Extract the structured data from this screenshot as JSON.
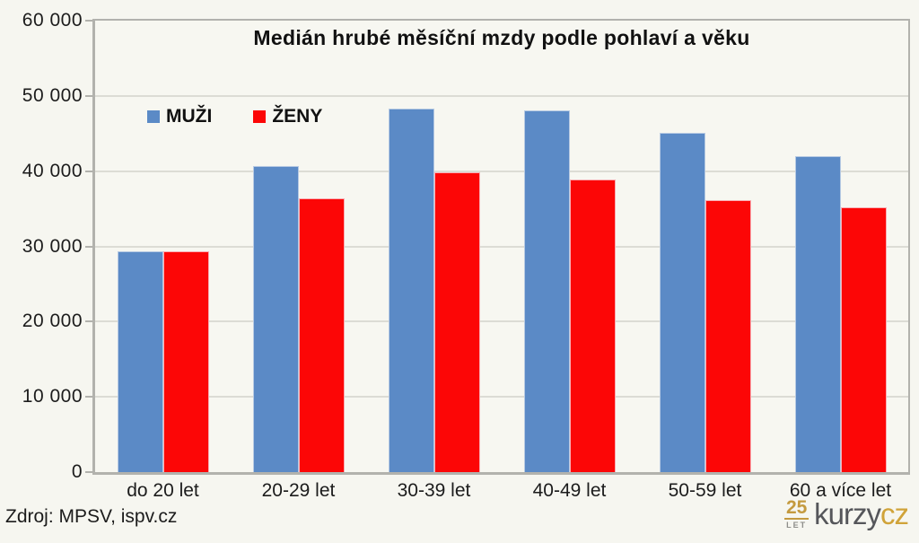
{
  "chart_data": {
    "type": "bar",
    "title": "Medián hrubé měsíční mzdy podle pohlaví a věku",
    "categories": [
      "do 20 let",
      "20-29 let",
      "30-39 let",
      "40-49 let",
      "50-59 let",
      "60 a více let"
    ],
    "series": [
      {
        "name": "MUŽI",
        "color": "#5b8ac6",
        "border_color": "#b7cae3",
        "values": [
          29300,
          40700,
          48300,
          48100,
          45100,
          42000
        ]
      },
      {
        "name": "ŽENY",
        "color": "#fc0606",
        "border_color": "#f9aeb4",
        "values": [
          29400,
          36400,
          39800,
          38900,
          36100,
          35200
        ]
      }
    ],
    "ylim": [
      0,
      60000
    ],
    "yticks": [
      0,
      10000,
      20000,
      30000,
      40000,
      50000,
      60000
    ],
    "ytick_labels": [
      "0",
      "10 000",
      "20 000",
      "30 000",
      "40 000",
      "50 000",
      "60 000"
    ],
    "grid": true,
    "legend_position": "inside-top-left"
  },
  "source": {
    "label": "Zdroj: MPSV, ispv.cz"
  },
  "logo": {
    "years": "25",
    "years_label": "LET",
    "name": "kurzy",
    "tld": "cz"
  }
}
